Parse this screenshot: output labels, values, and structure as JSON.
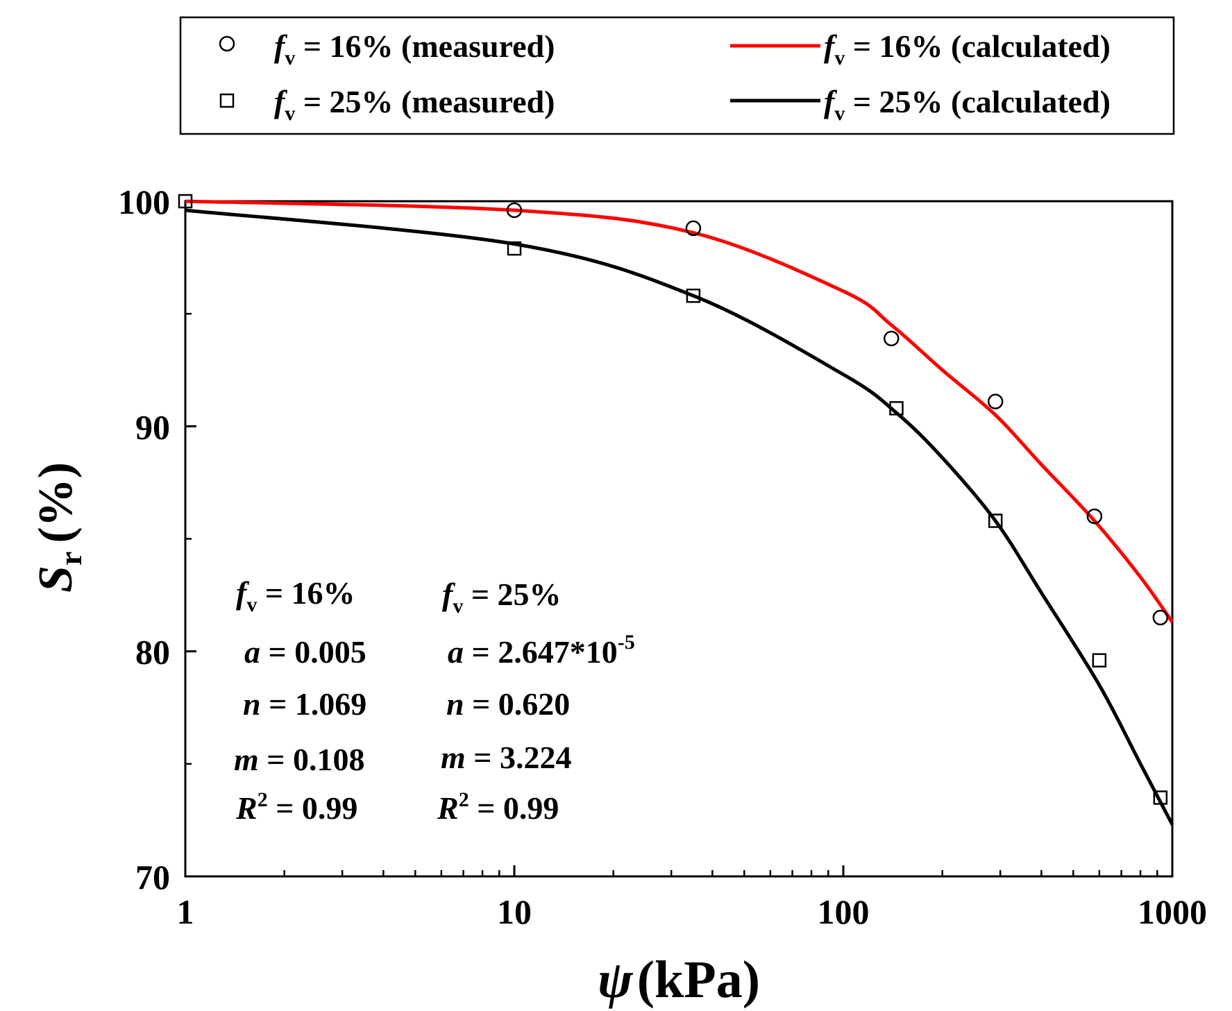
{
  "chart_data": {
    "type": "scatter",
    "title": "",
    "xlabel": {
      "symbol": "ψ",
      "unit": "(kPa)"
    },
    "ylabel": {
      "symbol": "S",
      "sub": "r",
      "unit": "(%)"
    },
    "xscale": "log",
    "xlim": [
      1,
      1000
    ],
    "ylim": [
      70,
      100
    ],
    "xticks": [
      1,
      10,
      100,
      1000
    ],
    "xtick_labels": [
      "1",
      "10",
      "100",
      "1000"
    ],
    "yticks": [
      70,
      80,
      90,
      100
    ],
    "ytick_labels": [
      "70",
      "80",
      "90",
      "100"
    ],
    "grid": false,
    "legend_position": "top",
    "legend": [
      {
        "sym": "f",
        "sub": "v",
        "text": " = 16% (measured)"
      },
      {
        "sym": "f",
        "sub": "v",
        "text": " = 16% (calculated)"
      },
      {
        "sym": "f",
        "sub": "v",
        "text": " = 25% (measured)"
      },
      {
        "sym": "f",
        "sub": "v",
        "text": " = 25% (calculated)"
      }
    ],
    "series": [
      {
        "name": "fv = 16% (measured)",
        "kind": "scatter",
        "marker": "circle",
        "color": "#000000",
        "x": [
          10,
          35,
          140,
          290,
          580,
          920
        ],
        "y": [
          99.6,
          98.8,
          93.9,
          91.1,
          86.0,
          81.5
        ]
      },
      {
        "name": "fv = 25% (measured)",
        "kind": "scatter",
        "marker": "square",
        "color": "#000000",
        "x": [
          1,
          10,
          35,
          145,
          290,
          600,
          920
        ],
        "y": [
          100.0,
          97.9,
          95.8,
          90.8,
          85.8,
          79.6,
          73.5
        ]
      },
      {
        "name": "fv = 16% (calculated)",
        "kind": "line",
        "color": "#ff0000",
        "x": [
          1,
          10,
          35,
          100,
          140,
          200,
          290,
          400,
          580,
          800,
          1000
        ],
        "y": [
          100.0,
          99.6,
          98.6,
          96.0,
          94.5,
          92.5,
          90.5,
          88.3,
          85.8,
          83.3,
          81.3
        ]
      },
      {
        "name": "fv = 25% (calculated)",
        "kind": "line",
        "color": "#000000",
        "x": [
          1,
          10,
          35,
          100,
          145,
          200,
          290,
          400,
          600,
          800,
          1000
        ],
        "y": [
          99.6,
          98.1,
          95.8,
          92.3,
          90.6,
          88.6,
          85.8,
          82.6,
          78.5,
          75.0,
          72.3
        ]
      }
    ],
    "annotations": {
      "fv16": {
        "header": {
          "sym": "f",
          "sub": "v",
          "text": " = 16%"
        },
        "a": {
          "sym": "a",
          "text": " = 0.005"
        },
        "n": {
          "sym": "n",
          "text": " = 1.069"
        },
        "m": {
          "sym": "m",
          "text": " = 0.108"
        },
        "r2": {
          "sym": "R",
          "sup": "2",
          "text": " = 0.99"
        }
      },
      "fv25": {
        "header": {
          "sym": "f",
          "sub": "v",
          "text": " = 25%"
        },
        "a": {
          "sym": "a",
          "text": " = 2.647*10",
          "sup": "-5"
        },
        "n": {
          "sym": "n",
          "text": " = 0.620"
        },
        "m": {
          "sym": "m",
          "text": " = 3.224"
        },
        "r2": {
          "sym": "R",
          "sup": "2",
          "text": " = 0.99"
        }
      }
    }
  }
}
